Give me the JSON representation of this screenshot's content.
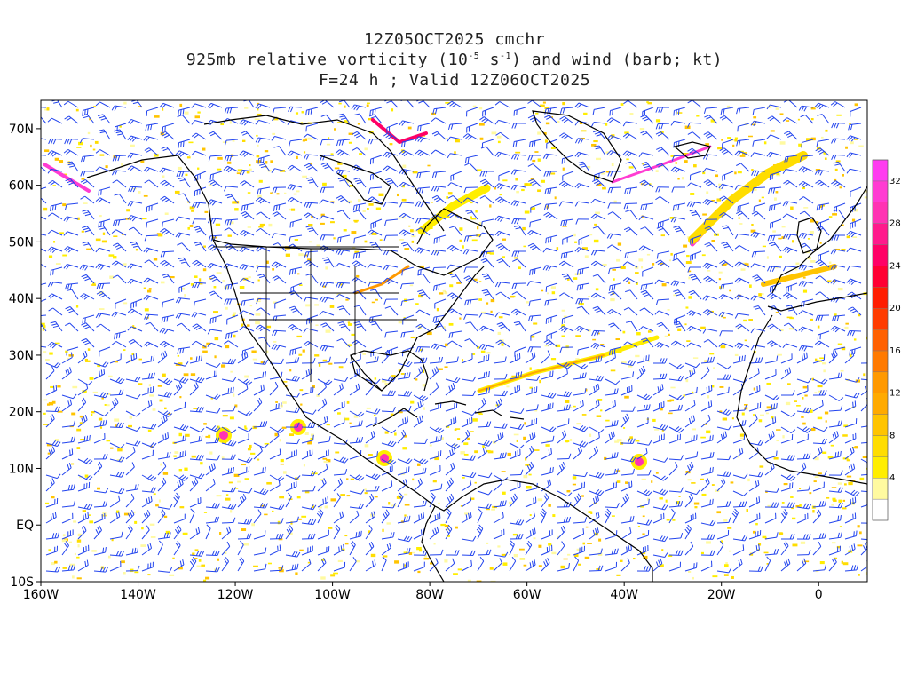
{
  "title": {
    "line1": "12Z05OCT2025 cmchr",
    "line2_pre": "925mb relative vorticity (10",
    "line2_exp1": "-5",
    "line2_mid": " s",
    "line2_exp2": "-1",
    "line2_post": ") and wind (barb; kt)",
    "line3": "F=24 h ; Valid 12Z06OCT2025"
  },
  "map": {
    "lon_range": [
      -160,
      10
    ],
    "lat_range": [
      -10,
      75
    ],
    "lat_ticks": [
      {
        "value": 70,
        "label": "70N"
      },
      {
        "value": 60,
        "label": "60N"
      },
      {
        "value": 50,
        "label": "50N"
      },
      {
        "value": 40,
        "label": "40N"
      },
      {
        "value": 30,
        "label": "30N"
      },
      {
        "value": 20,
        "label": "20N"
      },
      {
        "value": 10,
        "label": "10N"
      },
      {
        "value": 0,
        "label": "EQ"
      },
      {
        "value": -10,
        "label": "10S"
      }
    ],
    "lon_ticks": [
      {
        "value": -160,
        "label": "160W"
      },
      {
        "value": -140,
        "label": "140W"
      },
      {
        "value": -120,
        "label": "120W"
      },
      {
        "value": -100,
        "label": "100W"
      },
      {
        "value": -80,
        "label": "80W"
      },
      {
        "value": -60,
        "label": "60W"
      },
      {
        "value": -40,
        "label": "40W"
      },
      {
        "value": -20,
        "label": "20W"
      },
      {
        "value": 0,
        "label": "0"
      }
    ],
    "barb_color": "#2244ee",
    "coast_color": "#000000"
  },
  "colorbar": {
    "levels": [
      0,
      2,
      4,
      6,
      8,
      10,
      12,
      14,
      16,
      18,
      20,
      22,
      24,
      26,
      28,
      30,
      32,
      34
    ],
    "labels": [
      "4",
      "8",
      "12",
      "16",
      "20",
      "24",
      "28",
      "32"
    ],
    "colors": [
      "#ffffff",
      "#fffaa0",
      "#ffee00",
      "#ffdd00",
      "#ffc400",
      "#ffaa00",
      "#ff9900",
      "#ff7a00",
      "#ff6000",
      "#ff3c00",
      "#ff1e00",
      "#ff0033",
      "#ff0066",
      "#ff1a8c",
      "#ff33b3",
      "#ff3cd2",
      "#ff3cf0"
    ]
  }
}
